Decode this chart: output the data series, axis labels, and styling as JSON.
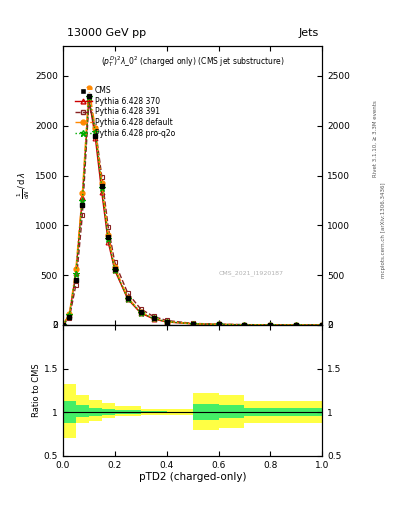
{
  "title_top_left": "13000 GeV pp",
  "title_top_right": "Jets",
  "plot_title": "$(p_T^D)^2\\lambda\\_0^2$ (charged only) (CMS jet substructure)",
  "xlabel": "pTD2 (charged-only)",
  "watermark": "CMS_2021_I1920187",
  "right_label_top": "Rivet 3.1.10, ≥ 3.3M events",
  "right_label_bot": "mcplots.cern.ch [arXiv:1306.3436]",
  "x_main": [
    0.0,
    0.025,
    0.05,
    0.075,
    0.1,
    0.125,
    0.15,
    0.175,
    0.2,
    0.25,
    0.3,
    0.35,
    0.4,
    0.5,
    0.6,
    0.7,
    0.8,
    0.9,
    1.0
  ],
  "cms_y": [
    0,
    80,
    450,
    1200,
    2300,
    1900,
    1400,
    880,
    560,
    270,
    130,
    65,
    32,
    12,
    5,
    2,
    0.8,
    0.3,
    0
  ],
  "py370_y": [
    0,
    100,
    520,
    1280,
    2280,
    1880,
    1330,
    830,
    550,
    260,
    120,
    60,
    30,
    11,
    5,
    1.8,
    0.7,
    0.2,
    0
  ],
  "py391_y": [
    0,
    70,
    400,
    1100,
    2220,
    1980,
    1490,
    980,
    630,
    320,
    160,
    85,
    45,
    16,
    8,
    3.5,
    1.3,
    0.4,
    0
  ],
  "pydef_y": [
    0,
    110,
    560,
    1320,
    2380,
    1980,
    1430,
    900,
    580,
    275,
    130,
    68,
    34,
    12,
    6,
    2.5,
    0.9,
    0.3,
    0
  ],
  "pyproq2o_y": [
    0,
    95,
    510,
    1240,
    2290,
    1940,
    1380,
    860,
    555,
    265,
    125,
    65,
    33,
    12,
    5.5,
    2.2,
    0.85,
    0.25,
    0
  ],
  "ratio_edges": [
    0.0,
    0.05,
    0.1,
    0.15,
    0.2,
    0.3,
    0.4,
    0.5,
    0.6,
    0.7,
    1.0
  ],
  "yellow_bot": [
    0.7,
    0.88,
    0.9,
    0.93,
    0.96,
    0.97,
    0.97,
    0.8,
    0.82,
    0.88,
    0.88
  ],
  "yellow_top": [
    1.32,
    1.2,
    1.14,
    1.1,
    1.07,
    1.04,
    1.03,
    1.22,
    1.2,
    1.13,
    1.13
  ],
  "green_bot": [
    0.87,
    0.94,
    0.96,
    0.97,
    0.98,
    0.99,
    0.995,
    0.91,
    0.93,
    0.96,
    0.96
  ],
  "green_top": [
    1.13,
    1.08,
    1.05,
    1.03,
    1.02,
    1.01,
    1.005,
    1.09,
    1.08,
    1.05,
    1.05
  ],
  "color_cms": "#000000",
  "color_370": "#cc0000",
  "color_391": "#882222",
  "color_default": "#ff8800",
  "color_proq2o": "#00aa00",
  "color_green": "#44ee66",
  "color_yellow": "#ffff44",
  "ylim_main": [
    0,
    2800
  ],
  "ylim_ratio": [
    0.5,
    2.0
  ],
  "xlim": [
    0.0,
    1.0
  ],
  "yticks_main": [
    0,
    500,
    1000,
    1500,
    2000,
    2500
  ],
  "yticks_ratio": [
    0.5,
    1.0,
    1.5,
    2.0
  ],
  "xticks": [
    0.0,
    0.2,
    0.4,
    0.6,
    0.8,
    1.0
  ]
}
